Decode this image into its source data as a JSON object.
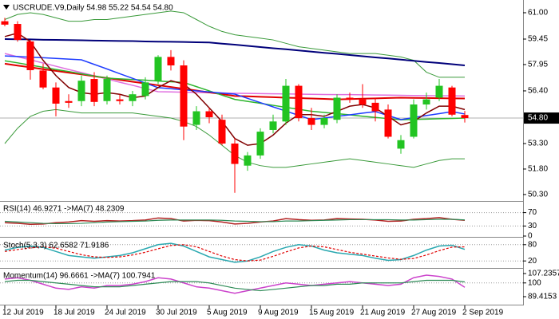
{
  "chart_data": [
    {
      "type": "candlestick",
      "title": "USCRUDE.V9,Daily  54.98 55.22 54.54 54.80",
      "categories": [
        "12 Jul 2019",
        null,
        null,
        null,
        "18 Jul 2019",
        null,
        null,
        null,
        "24 Jul 2019",
        null,
        null,
        null,
        "30 Jul 2019",
        null,
        null,
        null,
        "5 Aug 2019",
        null,
        null,
        null,
        "9 Aug 2019",
        null,
        null,
        null,
        "15 Aug 2019",
        null,
        null,
        null,
        "21 Aug 2019",
        null,
        null,
        null,
        "27 Aug 2019",
        null,
        null,
        null,
        "2 Sep 2019"
      ],
      "open": [
        60.5,
        60.34,
        59.31,
        57.6,
        56.6,
        55.8,
        55.8,
        57.1,
        55.8,
        55.9,
        55.8,
        56.1,
        57.0,
        58.4,
        57.9,
        54.4,
        55.2,
        54.7,
        53.3,
        52.0,
        52.6,
        54.1,
        54.6,
        56.7,
        54.8,
        54.4,
        54.7,
        56.0,
        55.9,
        55.7,
        55.3,
        53.0,
        53.7,
        55.6,
        56.0,
        56.6,
        54.98
      ],
      "high": [
        60.7,
        60.5,
        59.4,
        58.0,
        56.9,
        56.2,
        57.3,
        57.5,
        57.3,
        56.2,
        56.4,
        57.2,
        58.5,
        58.8,
        58.2,
        55.5,
        55.4,
        55.0,
        53.6,
        52.8,
        54.2,
        55.0,
        57.1,
        56.8,
        55.4,
        55.0,
        56.2,
        56.3,
        56.8,
        56.0,
        55.6,
        53.8,
        55.9,
        56.3,
        57.1,
        56.7,
        55.22
      ],
      "low": [
        60.2,
        59.3,
        57.06,
        56.5,
        54.9,
        55.4,
        55.5,
        55.5,
        55.6,
        55.6,
        55.5,
        55.9,
        56.8,
        57.6,
        53.5,
        54.1,
        54.5,
        53.2,
        50.4,
        51.7,
        52.4,
        53.9,
        54.4,
        54.6,
        54.1,
        54.2,
        54.5,
        55.7,
        55.4,
        54.6,
        53.6,
        52.7,
        53.6,
        55.3,
        55.8,
        54.9,
        54.54
      ],
      "close": [
        60.3,
        59.4,
        57.62,
        56.6,
        55.65,
        55.7,
        57.0,
        55.75,
        57.1,
        55.8,
        56.2,
        56.9,
        58.4,
        57.9,
        54.3,
        55.2,
        54.85,
        53.3,
        52.1,
        52.6,
        54.0,
        54.6,
        56.7,
        54.8,
        54.4,
        54.8,
        56.0,
        55.9,
        55.6,
        55.2,
        53.7,
        53.5,
        55.6,
        55.9,
        56.7,
        55.0,
        54.8
      ],
      "up_color": "#22c422",
      "down_color": "#ff0000",
      "series": [
        {
          "color": "#3a9a3a",
          "values": [
            60.6,
            60.9,
            61.0,
            60.9,
            60.7,
            60.5,
            60.5,
            60.6,
            60.6,
            60.7,
            60.8,
            60.9,
            61.0,
            61.1,
            61.0,
            60.6,
            60.2,
            59.9,
            59.7,
            59.6,
            59.5,
            59.4,
            59.2,
            59.0,
            58.9,
            58.8,
            58.7,
            58.6,
            58.6,
            58.6,
            58.5,
            58.4,
            58.2,
            57.5,
            57.2,
            57.2,
            57.2
          ]
        },
        {
          "color": "#3a9a3a",
          "values": [
            53.3,
            54.2,
            54.9,
            55.2,
            55.3,
            55.2,
            55.1,
            55.1,
            55.1,
            55.1,
            55.1,
            55.0,
            54.9,
            54.8,
            54.6,
            54.3,
            53.8,
            53.2,
            52.6,
            52.2,
            52.0,
            51.9,
            51.9,
            52.0,
            52.1,
            52.2,
            52.3,
            52.4,
            52.3,
            52.2,
            52.1,
            52.0,
            51.9,
            52.1,
            52.3,
            52.4,
            52.4
          ]
        },
        {
          "color": "#00007a",
          "values": [
            59.45,
            59.44,
            59.43,
            59.41,
            59.4,
            59.39,
            59.38,
            59.36,
            59.35,
            59.34,
            59.33,
            59.31,
            59.3,
            59.29,
            59.28,
            59.26,
            59.25,
            59.18,
            59.12,
            59.05,
            58.98,
            58.91,
            58.85,
            58.78,
            58.71,
            58.64,
            58.58,
            58.51,
            58.44,
            58.37,
            58.31,
            58.24,
            58.17,
            58.1,
            58.04,
            57.97,
            57.9
          ]
        },
        {
          "color": "#e070e0",
          "values": [
            58.6,
            58.41,
            58.23,
            58.04,
            57.85,
            57.66,
            57.48,
            57.29,
            57.1,
            56.91,
            56.73,
            56.54,
            56.35,
            56.34,
            56.32,
            56.31,
            56.29,
            56.28,
            56.26,
            56.25,
            56.24,
            56.23,
            56.22,
            56.21,
            56.2,
            56.19,
            56.18,
            56.18,
            56.17,
            56.16,
            56.15,
            56.14,
            56.13,
            56.12,
            56.11,
            56.11,
            56.1
          ]
        },
        {
          "color": "#e00000",
          "values": [
            58.0,
            57.89,
            57.79,
            57.68,
            57.58,
            57.47,
            57.37,
            57.26,
            57.16,
            57.05,
            56.94,
            56.84,
            56.73,
            56.63,
            56.52,
            56.42,
            56.31,
            56.21,
            56.1,
            56.08,
            56.05,
            56.03,
            56.0,
            55.98,
            55.95,
            55.93,
            55.9,
            55.92,
            55.94,
            55.96,
            55.98,
            56.0,
            55.99,
            55.98,
            55.97,
            55.96,
            55.95
          ]
        },
        {
          "color": "#2db52d",
          "values": [
            58.17,
            58.05,
            57.92,
            57.79,
            57.66,
            57.54,
            57.41,
            57.28,
            57.15,
            57.11,
            57.07,
            57.03,
            56.98,
            56.94,
            56.9,
            56.65,
            56.4,
            56.15,
            55.9,
            55.78,
            55.67,
            55.55,
            55.43,
            55.32,
            55.2,
            55.13,
            55.06,
            54.99,
            54.91,
            54.84,
            54.77,
            54.7,
            54.72,
            54.74,
            54.76,
            54.78,
            54.8
          ]
        },
        {
          "color": "#1e3cff",
          "values": [
            58.46,
            58.42,
            58.38,
            58.35,
            58.31,
            58.27,
            58.23,
            57.96,
            57.69,
            57.41,
            57.14,
            56.86,
            56.59,
            56.53,
            56.46,
            56.4,
            56.34,
            56.27,
            56.21,
            55.96,
            55.71,
            55.46,
            55.21,
            54.96,
            54.71,
            54.8,
            54.9,
            54.99,
            55.09,
            55.18,
            54.95,
            54.71,
            54.83,
            54.95,
            55.06,
            55.18,
            55.04
          ]
        },
        {
          "color": "#800000",
          "values": [
            59.6,
            59.8,
            59.3,
            58.2,
            57.3,
            56.6,
            56.3,
            56.2,
            56.3,
            56.2,
            56.0,
            56.1,
            56.6,
            57.0,
            56.8,
            56.2,
            55.4,
            54.6,
            53.6,
            53.2,
            53.3,
            53.8,
            54.5,
            55.0,
            55.0,
            54.9,
            55.2,
            55.5,
            55.6,
            55.4,
            54.9,
            54.4,
            54.6,
            55.1,
            55.5,
            55.5,
            55.3
          ]
        }
      ],
      "ylim": [
        49.92,
        61.75
      ],
      "yticks": [
        {
          "value": 61,
          "label": "61.00"
        },
        59.45,
        57.95,
        {
          "value": 56.4,
          "label": "56.40"
        },
        {
          "value": 53.3,
          "label": "53.30"
        },
        {
          "value": 51.8,
          "label": "51.80"
        },
        {
          "value": 50.3,
          "label": "50.30"
        }
      ],
      "last_price": {
        "value": 54.8,
        "label": "54.80"
      }
    },
    {
      "type": "line",
      "title": "RSI(14) 46.9271 ->MA(7) 48.2309",
      "series": [
        {
          "color": "#b22222",
          "values": [
            40,
            38,
            35,
            36,
            40,
            42,
            46,
            44,
            46,
            45,
            46,
            48,
            54,
            52,
            45,
            47,
            46,
            42,
            36,
            38,
            42,
            45,
            52,
            49,
            47,
            48,
            52,
            51,
            50,
            48,
            44,
            45,
            50,
            52,
            55,
            50,
            46.9271
          ]
        },
        {
          "color": "#2e8b57",
          "values": [
            44,
            42,
            40,
            38,
            37,
            37,
            38,
            40,
            42,
            43,
            44,
            45,
            47,
            48,
            48,
            48,
            48,
            47,
            45,
            44,
            43,
            43,
            45,
            45,
            46,
            47,
            48,
            49,
            49,
            49,
            49,
            48,
            48,
            49,
            50,
            50,
            48.2309
          ]
        }
      ],
      "ylim": [
        0,
        100
      ],
      "yticks": [
        70,
        30,
        0
      ],
      "levels": [
        70,
        30
      ]
    },
    {
      "type": "line",
      "title": "Stoch(5,3,3) 62.6582 71.9186",
      "series": [
        {
          "color": "#2aa8b0",
          "values": [
            60,
            70,
            75,
            70,
            55,
            40,
            35,
            30,
            35,
            40,
            50,
            65,
            80,
            85,
            75,
            55,
            35,
            25,
            15,
            20,
            35,
            55,
            70,
            80,
            75,
            60,
            50,
            45,
            40,
            30,
            22,
            25,
            40,
            60,
            75,
            78,
            62.6582
          ]
        },
        {
          "color": "#e00000",
          "dashed": true,
          "values": [
            55,
            62,
            68,
            72,
            67,
            55,
            43,
            35,
            33,
            35,
            42,
            52,
            65,
            77,
            80,
            72,
            55,
            38,
            25,
            20,
            23,
            37,
            53,
            68,
            75,
            72,
            62,
            52,
            45,
            38,
            31,
            26,
            29,
            42,
            58,
            71,
            71.9186
          ]
        }
      ],
      "ylim": [
        0,
        100
      ],
      "yticks": [
        80,
        20
      ],
      "levels": [
        80,
        20
      ]
    },
    {
      "type": "line",
      "title": "Momentum(14) 96.6661 ->MA(7) 100.7941",
      "series": [
        {
          "color": "#cc44cc",
          "values": [
            103,
            104,
            102,
            99,
            96,
            95,
            97,
            96,
            98,
            98,
            99,
            101,
            104,
            103,
            100,
            97,
            96,
            94,
            92,
            94,
            96,
            98,
            100,
            99,
            98,
            99,
            100,
            101,
            100,
            99,
            98,
            99,
            104,
            106,
            105,
            103,
            96.6661
          ]
        },
        {
          "color": "#2e8b57",
          "values": [
            101,
            102,
            102,
            101,
            100,
            99,
            98,
            97,
            97,
            97,
            98,
            99,
            100,
            101,
            101,
            101,
            100,
            98,
            96,
            95,
            94,
            95,
            96,
            97,
            98,
            98,
            99,
            99,
            100,
            100,
            100,
            100,
            101,
            102,
            102,
            102,
            100.7941
          ]
        }
      ],
      "ylim": [
        83.27,
        110.31
      ],
      "yticks": [
        107.2357,
        100,
        89.4153
      ],
      "levels": [
        100
      ]
    }
  ]
}
